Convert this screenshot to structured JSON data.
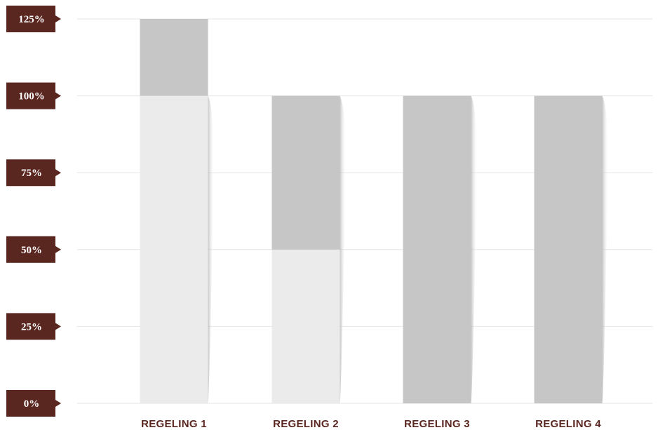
{
  "chart_data": {
    "type": "bar",
    "stacked": true,
    "categories": [
      "REGELING 1",
      "REGELING 2",
      "REGELING 3",
      "REGELING 4"
    ],
    "series": [
      {
        "values": [
          100,
          50,
          0,
          0
        ],
        "color": "#ebebeb"
      },
      {
        "values": [
          25,
          50,
          100,
          100
        ],
        "color": "#c6c6c6"
      }
    ],
    "y_ticks": [
      {
        "value": 0,
        "label": "0%"
      },
      {
        "value": 25,
        "label": "25%"
      },
      {
        "value": 50,
        "label": "50%"
      },
      {
        "value": 75,
        "label": "75%"
      },
      {
        "value": 100,
        "label": "100%"
      },
      {
        "value": 125,
        "label": "125%"
      }
    ],
    "ylim": [
      0,
      125
    ],
    "grid": true,
    "title": "",
    "xlabel": "",
    "ylabel": "",
    "colors": {
      "tick_box": "#5a2620",
      "category_text": "#5a2620",
      "gridline": "#e6e6e6"
    }
  }
}
